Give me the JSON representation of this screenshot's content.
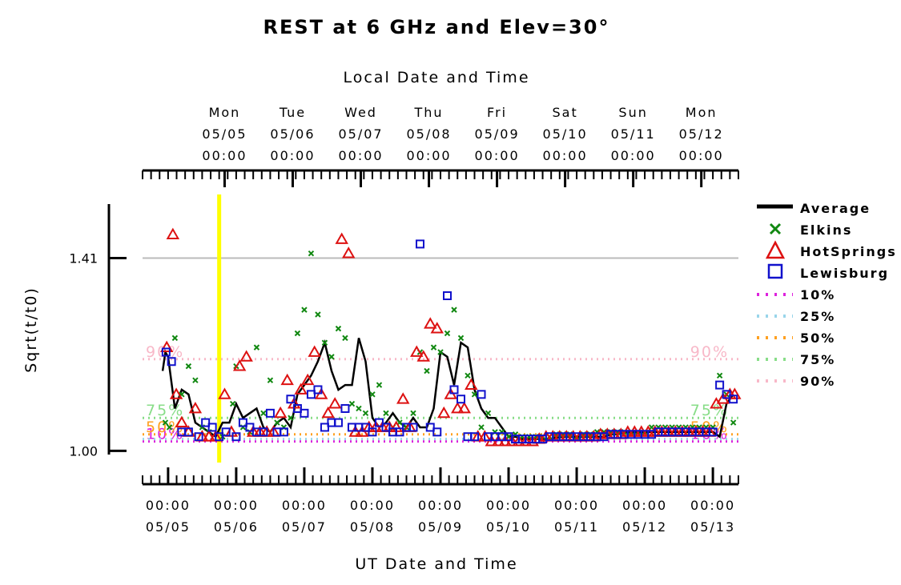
{
  "chart_data": {
    "type": "scatter",
    "title": "REST at 6 GHz and Elev=30°",
    "top_axis_label": "Local Date and Time",
    "xlabel": "UT Date and Time",
    "ylabel": "Sqrt(t/t0)",
    "ylim": [
      0.975,
      1.525
    ],
    "y_ticks": [
      {
        "value": 1.0,
        "label": "1.00"
      },
      {
        "value": 1.41,
        "label": "1.41"
      }
    ],
    "grid": false,
    "legend_position": "right",
    "x_range_ut_days": [
      -0.375,
      8.375
    ],
    "bottom_ticks": [
      {
        "day": 0,
        "time": "00:00",
        "date": "05/05"
      },
      {
        "day": 1,
        "time": "00:00",
        "date": "05/06"
      },
      {
        "day": 2,
        "time": "00:00",
        "date": "05/07"
      },
      {
        "day": 3,
        "time": "00:00",
        "date": "05/08"
      },
      {
        "day": 4,
        "time": "00:00",
        "date": "05/09"
      },
      {
        "day": 5,
        "time": "00:00",
        "date": "05/10"
      },
      {
        "day": 6,
        "time": "00:00",
        "date": "05/11"
      },
      {
        "day": 7,
        "time": "00:00",
        "date": "05/12"
      },
      {
        "day": 8,
        "time": "00:00",
        "date": "05/13"
      }
    ],
    "top_ticks": [
      {
        "day": 0.83,
        "dow": "Mon",
        "date": "05/05",
        "time": "00:00"
      },
      {
        "day": 1.83,
        "dow": "Tue",
        "date": "05/06",
        "time": "00:00"
      },
      {
        "day": 2.83,
        "dow": "Wed",
        "date": "05/07",
        "time": "00:00"
      },
      {
        "day": 3.83,
        "dow": "Thu",
        "date": "05/08",
        "time": "00:00"
      },
      {
        "day": 4.83,
        "dow": "Fri",
        "date": "05/09",
        "time": "00:00"
      },
      {
        "day": 5.83,
        "dow": "Sat",
        "date": "05/10",
        "time": "00:00"
      },
      {
        "day": 6.83,
        "dow": "Sun",
        "date": "05/11",
        "time": "00:00"
      },
      {
        "day": 7.83,
        "dow": "Mon",
        "date": "05/12",
        "time": "00:00"
      }
    ],
    "reference_line": {
      "value": 1.41,
      "color": "#bbbbbb"
    },
    "current_time_marker": {
      "day": 0.75,
      "color": "#ffff00"
    },
    "percentile_lines": [
      {
        "name": "10%",
        "value": 1.02,
        "color": "#dd22dd",
        "left_label": "10%",
        "right_label": "10%"
      },
      {
        "name": "25%",
        "value": 1.025,
        "color": "#99d5ea",
        "left_label": "",
        "right_label": ""
      },
      {
        "name": "50%",
        "value": 1.035,
        "color": "#ffa020",
        "left_label": "50%",
        "right_label": "50%"
      },
      {
        "name": "75%",
        "value": 1.07,
        "color": "#88dd88",
        "left_label": "75%",
        "right_label": "75%"
      },
      {
        "name": "90%",
        "value": 1.195,
        "color": "#f8b8c8",
        "left_label": "90%",
        "right_label": "90%"
      }
    ],
    "series": [
      {
        "name": "Average",
        "marker": "line",
        "color": "#000000",
        "x": [
          -0.08,
          -0.04,
          0.0,
          0.1,
          0.2,
          0.3,
          0.4,
          0.5,
          0.6,
          0.7,
          0.8,
          0.9,
          1.0,
          1.1,
          1.2,
          1.3,
          1.4,
          1.5,
          1.6,
          1.7,
          1.8,
          1.9,
          2.0,
          2.1,
          2.2,
          2.3,
          2.4,
          2.5,
          2.6,
          2.7,
          2.8,
          2.9,
          3.0,
          3.1,
          3.2,
          3.3,
          3.4,
          3.5,
          3.6,
          3.7,
          3.8,
          3.9,
          4.0,
          4.1,
          4.2,
          4.3,
          4.4,
          4.5,
          4.6,
          4.7,
          4.8,
          4.9,
          5.0,
          5.1,
          5.2,
          5.3,
          5.4,
          5.5,
          5.6,
          5.7,
          5.8,
          5.9,
          6.0,
          6.1,
          6.2,
          6.3,
          6.4,
          6.5,
          6.6,
          6.7,
          6.8,
          6.9,
          7.0,
          7.1,
          7.2,
          7.3,
          7.4,
          7.5,
          7.6,
          7.7,
          7.8,
          7.9,
          8.0,
          8.1,
          8.2,
          8.3
        ],
        "y": [
          1.17,
          1.21,
          1.2,
          1.09,
          1.13,
          1.12,
          1.06,
          1.05,
          1.04,
          1.03,
          1.06,
          1.06,
          1.1,
          1.07,
          1.08,
          1.09,
          1.05,
          1.04,
          1.06,
          1.07,
          1.05,
          1.12,
          1.14,
          1.16,
          1.19,
          1.23,
          1.17,
          1.13,
          1.14,
          1.14,
          1.24,
          1.19,
          1.07,
          1.05,
          1.06,
          1.08,
          1.06,
          1.05,
          1.07,
          1.05,
          1.05,
          1.09,
          1.21,
          1.2,
          1.14,
          1.23,
          1.22,
          1.13,
          1.09,
          1.07,
          1.07,
          1.05,
          1.03,
          1.03,
          1.025,
          1.025,
          1.025,
          1.025,
          1.025,
          1.028,
          1.03,
          1.03,
          1.03,
          1.03,
          1.03,
          1.03,
          1.03,
          1.035,
          1.035,
          1.04,
          1.04,
          1.04,
          1.04,
          1.04,
          1.04,
          1.04,
          1.04,
          1.04,
          1.04,
          1.04,
          1.04,
          1.04,
          1.04,
          1.03,
          1.1,
          1.12
        ]
      },
      {
        "name": "Elkins",
        "marker": "x",
        "color": "#118811",
        "x": [
          -0.04,
          0.02,
          0.1,
          0.2,
          0.3,
          0.4,
          0.5,
          0.6,
          0.8,
          0.95,
          1.0,
          1.1,
          1.2,
          1.3,
          1.4,
          1.5,
          1.6,
          1.7,
          1.8,
          1.9,
          2.0,
          2.1,
          2.2,
          2.3,
          2.4,
          2.5,
          2.6,
          2.7,
          2.8,
          2.9,
          3.0,
          3.1,
          3.2,
          3.3,
          3.4,
          3.5,
          3.6,
          3.7,
          3.8,
          3.9,
          4.0,
          4.1,
          4.2,
          4.3,
          4.4,
          4.5,
          4.6,
          4.7,
          4.8,
          4.9,
          5.0,
          5.1,
          5.2,
          5.3,
          5.4,
          5.5,
          5.6,
          5.7,
          5.8,
          5.9,
          6.0,
          6.1,
          6.2,
          6.3,
          6.4,
          6.5,
          6.6,
          6.7,
          6.8,
          6.9,
          7.0,
          7.1,
          7.2,
          7.3,
          7.4,
          7.5,
          7.6,
          7.7,
          7.8,
          7.9,
          8.0,
          8.1,
          8.2,
          8.3
        ],
        "y": [
          1.06,
          1.05,
          1.24,
          1.12,
          1.18,
          1.15,
          1.05,
          1.04,
          1.03,
          1.1,
          1.18,
          1.05,
          1.04,
          1.22,
          1.08,
          1.15,
          1.06,
          1.05,
          1.07,
          1.25,
          1.3,
          1.42,
          1.29,
          1.23,
          1.2,
          1.26,
          1.24,
          1.1,
          1.09,
          1.08,
          1.12,
          1.14,
          1.08,
          1.05,
          1.06,
          1.05,
          1.08,
          1.21,
          1.17,
          1.22,
          1.21,
          1.25,
          1.3,
          1.24,
          1.16,
          1.12,
          1.05,
          1.08,
          1.04,
          1.04,
          1.03,
          1.035,
          1.03,
          1.03,
          1.03,
          1.03,
          1.03,
          1.035,
          1.035,
          1.035,
          1.03,
          1.035,
          1.035,
          1.04,
          1.04,
          1.04,
          1.04,
          1.04,
          1.04,
          1.04,
          1.04,
          1.05,
          1.05,
          1.05,
          1.05,
          1.05,
          1.05,
          1.05,
          1.05,
          1.05,
          1.05,
          1.16,
          1.12,
          1.06
        ]
      },
      {
        "name": "HotSprings",
        "marker": "triangle",
        "color": "#dd1111",
        "x": [
          -0.02,
          0.07,
          0.12,
          0.2,
          0.3,
          0.4,
          0.5,
          0.6,
          0.7,
          0.83,
          0.93,
          1.05,
          1.15,
          1.25,
          1.35,
          1.45,
          1.55,
          1.65,
          1.75,
          1.85,
          1.95,
          2.05,
          2.15,
          2.25,
          2.35,
          2.45,
          2.55,
          2.65,
          2.75,
          2.85,
          2.95,
          3.05,
          3.15,
          3.25,
          3.35,
          3.45,
          3.55,
          3.65,
          3.75,
          3.85,
          3.95,
          4.05,
          4.15,
          4.25,
          4.35,
          4.45,
          4.55,
          4.65,
          4.75,
          4.85,
          4.95,
          5.05,
          5.15,
          5.25,
          5.35,
          5.45,
          5.55,
          5.65,
          5.75,
          5.85,
          5.95,
          6.05,
          6.15,
          6.25,
          6.35,
          6.45,
          6.55,
          6.65,
          6.75,
          6.85,
          6.95,
          7.05,
          7.15,
          7.25,
          7.35,
          7.45,
          7.55,
          7.65,
          7.75,
          7.85,
          7.95,
          8.05,
          8.15,
          8.25,
          8.32
        ],
        "y": [
          1.22,
          1.46,
          1.12,
          1.06,
          1.04,
          1.09,
          1.03,
          1.03,
          1.03,
          1.12,
          1.04,
          1.18,
          1.2,
          1.04,
          1.04,
          1.04,
          1.04,
          1.08,
          1.15,
          1.1,
          1.13,
          1.15,
          1.21,
          1.12,
          1.08,
          1.1,
          1.45,
          1.42,
          1.04,
          1.04,
          1.05,
          1.05,
          1.05,
          1.05,
          1.05,
          1.11,
          1.05,
          1.21,
          1.2,
          1.27,
          1.26,
          1.08,
          1.12,
          1.09,
          1.09,
          1.14,
          1.03,
          1.03,
          1.02,
          1.02,
          1.02,
          1.02,
          1.02,
          1.02,
          1.02,
          1.025,
          1.03,
          1.03,
          1.03,
          1.03,
          1.03,
          1.03,
          1.03,
          1.03,
          1.035,
          1.035,
          1.035,
          1.035,
          1.04,
          1.04,
          1.04,
          1.04,
          1.04,
          1.04,
          1.04,
          1.04,
          1.04,
          1.04,
          1.04,
          1.04,
          1.04,
          1.1,
          1.11,
          1.12,
          1.12
        ]
      },
      {
        "name": "Lewisburg",
        "marker": "square",
        "color": "#1111cc",
        "x": [
          -0.03,
          0.05,
          0.2,
          0.3,
          0.45,
          0.55,
          0.65,
          0.75,
          0.85,
          1.0,
          1.1,
          1.2,
          1.3,
          1.4,
          1.5,
          1.6,
          1.7,
          1.8,
          1.9,
          2.0,
          2.1,
          2.2,
          2.3,
          2.4,
          2.5,
          2.6,
          2.7,
          2.8,
          2.9,
          3.0,
          3.1,
          3.2,
          3.3,
          3.4,
          3.5,
          3.6,
          3.7,
          3.85,
          3.95,
          4.1,
          4.2,
          4.3,
          4.4,
          4.5,
          4.6,
          4.7,
          4.8,
          4.9,
          5.0,
          5.1,
          5.2,
          5.3,
          5.4,
          5.5,
          5.6,
          5.7,
          5.8,
          5.9,
          6.0,
          6.1,
          6.2,
          6.3,
          6.4,
          6.5,
          6.6,
          6.7,
          6.8,
          6.9,
          7.0,
          7.1,
          7.2,
          7.3,
          7.4,
          7.5,
          7.6,
          7.7,
          7.8,
          7.9,
          8.0,
          8.1,
          8.2,
          8.3
        ],
        "y": [
          1.21,
          1.19,
          1.04,
          1.04,
          1.03,
          1.06,
          1.05,
          1.03,
          1.04,
          1.03,
          1.06,
          1.05,
          1.04,
          1.04,
          1.08,
          1.04,
          1.04,
          1.11,
          1.09,
          1.08,
          1.12,
          1.13,
          1.05,
          1.06,
          1.06,
          1.09,
          1.05,
          1.05,
          1.05,
          1.04,
          1.06,
          1.05,
          1.04,
          1.04,
          1.05,
          1.05,
          1.44,
          1.05,
          1.04,
          1.33,
          1.13,
          1.11,
          1.03,
          1.03,
          1.12,
          1.03,
          1.03,
          1.03,
          1.03,
          1.025,
          1.025,
          1.025,
          1.025,
          1.025,
          1.03,
          1.03,
          1.03,
          1.03,
          1.03,
          1.03,
          1.03,
          1.03,
          1.03,
          1.035,
          1.035,
          1.035,
          1.035,
          1.035,
          1.035,
          1.035,
          1.04,
          1.04,
          1.04,
          1.04,
          1.04,
          1.04,
          1.04,
          1.04,
          1.04,
          1.14,
          1.12,
          1.11
        ]
      }
    ]
  }
}
